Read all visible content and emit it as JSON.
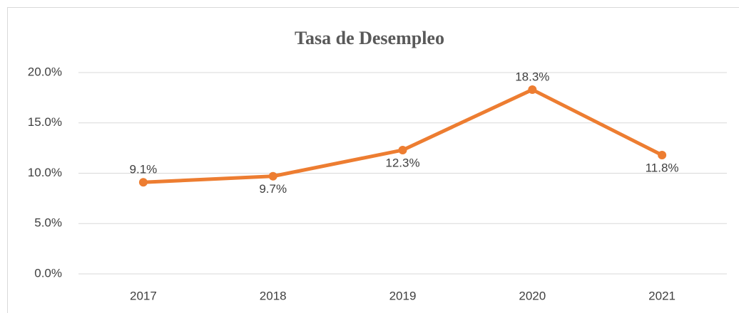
{
  "chart_data": {
    "type": "line",
    "title": "Tasa de Desempleo",
    "categories": [
      "2017",
      "2018",
      "2019",
      "2020",
      "2021"
    ],
    "series": [
      {
        "name": "Tasa de Desempleo",
        "color": "#ed7d31",
        "values": [
          9.1,
          9.7,
          12.3,
          18.3,
          11.8
        ],
        "value_labels": [
          "9.1%",
          "9.7%",
          "12.3%",
          "18.3%",
          "11.8%"
        ]
      }
    ],
    "ylim": [
      0,
      20
    ],
    "yticks": [
      {
        "value": 0,
        "label": "0.0%"
      },
      {
        "value": 5,
        "label": "5.0%"
      },
      {
        "value": 10,
        "label": "10.0%"
      },
      {
        "value": 15,
        "label": "15.0%"
      },
      {
        "value": 20,
        "label": "20.0%"
      }
    ],
    "grid": true
  }
}
